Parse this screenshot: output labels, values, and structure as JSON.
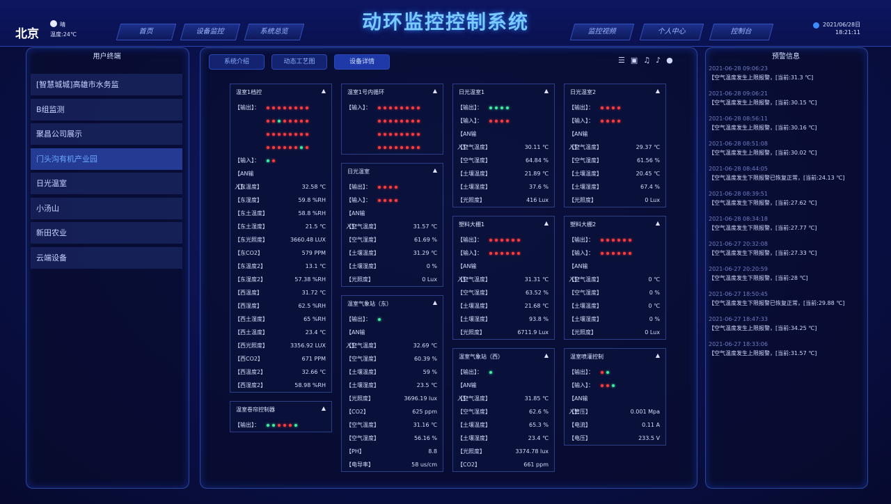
{
  "header": {
    "city": "北京",
    "weather": "晴",
    "temperature": "温度:24℃",
    "nav_left": [
      "首页",
      "设备监控",
      "系统总览"
    ],
    "title": "动环监控控制系统",
    "nav_right": [
      "监控视频",
      "个人中心",
      "控制台"
    ],
    "date": "2021/06/28日",
    "time": "18:21:11"
  },
  "sidebar": {
    "title": "用户终端",
    "items": [
      "[智慧城城]高雄市水务监",
      "B组监测",
      "聚昌公司展示",
      "门头沟有机产业园",
      "日光温室",
      "小汤山",
      "新田农业",
      "云端设备"
    ],
    "active": 3
  },
  "tabs": {
    "items": [
      "系统介绍",
      "动态工艺图",
      "设备详情"
    ],
    "active": 2
  },
  "columns": [
    [
      {
        "title": "温室1档控",
        "rows": [
          {
            "label": "【输出】：",
            "lights": [
              [
                "r",
                "r",
                "r",
                "r",
                "r",
                "r",
                "r",
                "r"
              ],
              [
                "r",
                "r",
                "g",
                "r",
                "r",
                "r",
                "r",
                "r"
              ],
              [
                "r",
                "r",
                "r",
                "r",
                "r",
                "r",
                "r",
                "r"
              ],
              [
                "r",
                "r",
                "r",
                "r",
                "r",
                "r",
                "g",
                "r"
              ]
            ]
          },
          {
            "label": "【输入】：",
            "lights": [
              [
                "g",
                "r"
              ]
            ]
          },
          {
            "label": "【AN输入】："
          },
          {
            "label": "【东温度】",
            "value": "32.58 ℃"
          },
          {
            "label": "【东湿度】",
            "value": "59.8 %RH"
          },
          {
            "label": "【东土温度】",
            "value": "58.8 %RH"
          },
          {
            "label": "【东土湿度】",
            "value": "21.5 ℃"
          },
          {
            "label": "【东光照度】",
            "value": "3660.48 LUX"
          },
          {
            "label": "【东CO2】",
            "value": "579 PPM"
          },
          {
            "label": "【东温度2】",
            "value": "13.1 ℃"
          },
          {
            "label": "【东湿度2】",
            "value": "57.38 %RH"
          },
          {
            "label": "【西温度】",
            "value": "31.72 ℃"
          },
          {
            "label": "【西湿度】",
            "value": "62.5 %RH"
          },
          {
            "label": "【西土湿度】",
            "value": "65 %RH"
          },
          {
            "label": "【西土温度】",
            "value": "23.4 ℃"
          },
          {
            "label": "【西光照度】",
            "value": "3356.92 LUX"
          },
          {
            "label": "【西CO2】",
            "value": "671 PPM"
          },
          {
            "label": "【西温度2】",
            "value": "32.66 ℃"
          },
          {
            "label": "【西湿度2】",
            "value": "58.98 %RH"
          }
        ]
      },
      {
        "title": "温室卷帘控制器",
        "rows": [
          {
            "label": "【输出】：",
            "lights": [
              [
                "g",
                "g",
                "r",
                "r",
                "r",
                "g"
              ]
            ]
          }
        ]
      }
    ],
    [
      {
        "title": "温室1号内循环",
        "rows": [
          {
            "label": "【输入】：",
            "lights": [
              [
                "r",
                "r",
                "r",
                "r",
                "r",
                "r",
                "r",
                "r"
              ],
              [
                "r",
                "r",
                "r",
                "r",
                "r",
                "r",
                "r",
                "r"
              ],
              [
                "r",
                "r",
                "r",
                "r",
                "r",
                "r",
                "r",
                "r"
              ],
              [
                "r",
                "r",
                "r",
                "r",
                "r",
                "r",
                "r",
                "r"
              ]
            ]
          }
        ]
      },
      {
        "title": "日光温室",
        "rows": [
          {
            "label": "【输出】：",
            "lights": [
              [
                "r",
                "r",
                "r",
                "r"
              ]
            ]
          },
          {
            "label": "【输入】：",
            "lights": [
              [
                "r",
                "r",
                "r",
                "r"
              ]
            ]
          },
          {
            "label": "【AN输入】："
          },
          {
            "label": "【空气温度】",
            "value": "31.57 ℃"
          },
          {
            "label": "【空气湿度】",
            "value": "61.69 %"
          },
          {
            "label": "【土壤温度】",
            "value": "31.29 ℃"
          },
          {
            "label": "【土壤湿度】",
            "value": "0 %"
          },
          {
            "label": "【光照度】",
            "value": "0 Lux"
          }
        ]
      },
      {
        "title": "温室气象站（东）",
        "rows": [
          {
            "label": "【输出】：",
            "lights": [
              [
                "g"
              ]
            ]
          },
          {
            "label": "【AN输入】："
          },
          {
            "label": "【空气温度】",
            "value": "32.69 ℃"
          },
          {
            "label": "【空气湿度】",
            "value": "60.39 %"
          },
          {
            "label": "【土壤温度】",
            "value": "59 %"
          },
          {
            "label": "【土壤湿度】",
            "value": "23.5 ℃"
          },
          {
            "label": "【光照度】",
            "value": "3696.19 lux"
          },
          {
            "label": "【CO2】",
            "value": "625 ppm"
          },
          {
            "label": "【空气温度】",
            "value": "31.16 ℃"
          },
          {
            "label": "【空气湿度】",
            "value": "56.16 %"
          },
          {
            "label": "【PH】",
            "value": "8.8"
          },
          {
            "label": "【电导率】",
            "value": "58 us/cm"
          }
        ]
      }
    ],
    [
      {
        "title": "日光温室1",
        "rows": [
          {
            "label": "【输出】：",
            "lights": [
              [
                "g",
                "g",
                "g",
                "g"
              ]
            ]
          },
          {
            "label": "【输入】：",
            "lights": [
              [
                "r",
                "r",
                "r",
                "r"
              ]
            ]
          },
          {
            "label": "【AN输入】："
          },
          {
            "label": "【空气温度】",
            "value": "30.11 ℃"
          },
          {
            "label": "【空气湿度】",
            "value": "64.84 %"
          },
          {
            "label": "【土壤温度】",
            "value": "21.89 ℃"
          },
          {
            "label": "【土壤湿度】",
            "value": "37.6 %"
          },
          {
            "label": "【光照度】",
            "value": "416 Lux"
          }
        ]
      },
      {
        "title": "塑料大棚1",
        "rows": [
          {
            "label": "【输出】：",
            "lights": [
              [
                "r",
                "r",
                "r",
                "r",
                "r",
                "r"
              ]
            ]
          },
          {
            "label": "【输入】：",
            "lights": [
              [
                "r",
                "r",
                "r",
                "r",
                "r",
                "r"
              ]
            ]
          },
          {
            "label": "【AN输入】："
          },
          {
            "label": "【空气温度】",
            "value": "31.31 ℃"
          },
          {
            "label": "【空气湿度】",
            "value": "63.52 %"
          },
          {
            "label": "【土壤温度】",
            "value": "21.68 ℃"
          },
          {
            "label": "【土壤湿度】",
            "value": "93.8 %"
          },
          {
            "label": "【光照度】",
            "value": "6711.9 Lux"
          }
        ]
      },
      {
        "title": "温室气象站（西）",
        "rows": [
          {
            "label": "【输出】：",
            "lights": [
              [
                "g"
              ]
            ]
          },
          {
            "label": "【AN输入】："
          },
          {
            "label": "【空气温度】",
            "value": "31.85 ℃"
          },
          {
            "label": "【空气湿度】",
            "value": "62.6 %"
          },
          {
            "label": "【土壤温度】",
            "value": "65.3 %"
          },
          {
            "label": "【土壤湿度】",
            "value": "23.4 ℃"
          },
          {
            "label": "【光照度】",
            "value": "3374.78 lux"
          },
          {
            "label": "【CO2】",
            "value": "661 ppm"
          }
        ]
      }
    ],
    [
      {
        "title": "日光温室2",
        "rows": [
          {
            "label": "【输出】：",
            "lights": [
              [
                "r",
                "r",
                "r",
                "r"
              ]
            ]
          },
          {
            "label": "【输入】：",
            "lights": [
              [
                "r",
                "r",
                "r",
                "r"
              ]
            ]
          },
          {
            "label": "【AN输入】："
          },
          {
            "label": "【空气温度】",
            "value": "29.37 ℃"
          },
          {
            "label": "【空气湿度】",
            "value": "61.56 %"
          },
          {
            "label": "【土壤温度】",
            "value": "20.45 ℃"
          },
          {
            "label": "【土壤湿度】",
            "value": "67.4 %"
          },
          {
            "label": "【光照度】",
            "value": "0 Lux"
          }
        ]
      },
      {
        "title": "塑料大棚2",
        "rows": [
          {
            "label": "【输出】：",
            "lights": [
              [
                "r",
                "r",
                "r",
                "r",
                "r",
                "r"
              ]
            ]
          },
          {
            "label": "【输入】：",
            "lights": [
              [
                "r",
                "r",
                "r",
                "r",
                "r",
                "r"
              ]
            ]
          },
          {
            "label": "【AN输入】："
          },
          {
            "label": "【空气温度】",
            "value": "0 ℃"
          },
          {
            "label": "【空气湿度】",
            "value": "0 %"
          },
          {
            "label": "【土壤温度】",
            "value": "0 ℃"
          },
          {
            "label": "【土壤湿度】",
            "value": "0 %"
          },
          {
            "label": "【光照度】",
            "value": "0 Lux"
          }
        ]
      },
      {
        "title": "温室喷灌控制",
        "rows": [
          {
            "label": "【输出】：",
            "lights": [
              [
                "r",
                "g"
              ]
            ]
          },
          {
            "label": "【输入】：",
            "lights": [
              [
                "r",
                "r",
                "g"
              ]
            ]
          },
          {
            "label": "【AN输入】："
          },
          {
            "label": "【管压】",
            "value": "0.001 Mpa"
          },
          {
            "label": "【电流】",
            "value": "0.11 A"
          },
          {
            "label": "【电压】",
            "value": "233.5 V"
          }
        ]
      }
    ]
  ],
  "alerts": {
    "title": "预警信息",
    "items": [
      {
        "time": "2021-06-28 09:06:23",
        "message": "【空气温度发生上限报警，[当前:31.3 ℃]"
      },
      {
        "time": "2021-06-28 09:06:21",
        "message": "【空气温度发生上限报警，[当前:30.15 ℃]"
      },
      {
        "time": "2021-06-28 08:56:11",
        "message": "【空气温度发生上限报警，[当前:30.16 ℃]"
      },
      {
        "time": "2021-06-28 08:51:08",
        "message": "【空气温度发生上限报警，[当前:30.02 ℃]"
      },
      {
        "time": "2021-06-28 08:44:05",
        "message": "【空气温度发生下限报警已恢复正常，[当前:24.13 ℃]"
      },
      {
        "time": "2021-06-28 08:39:51",
        "message": "【空气温度发生下限报警，[当前:27.62 ℃]"
      },
      {
        "time": "2021-06-28 08:34:18",
        "message": "【空气温度发生下限报警，[当前:27.77 ℃]"
      },
      {
        "time": "2021-06-27 20:32:08",
        "message": "【空气温度发生下限报警，[当前:27.33 ℃]"
      },
      {
        "time": "2021-06-27 20:20:59",
        "message": "【空气温度发生下限报警，[当前:28 ℃]"
      },
      {
        "time": "2021-06-27 18:50:45",
        "message": "【空气温度发生下限报警已恢复正常，[当前:29.88 ℃]"
      },
      {
        "time": "2021-06-27 18:47:33",
        "message": "【空气温度发生上限报警，[当前:34.25 ℃]"
      },
      {
        "time": "2021-06-27 18:33:06",
        "message": "【空气温度发生上限报警，[当前:31.57 ℃]"
      }
    ]
  }
}
